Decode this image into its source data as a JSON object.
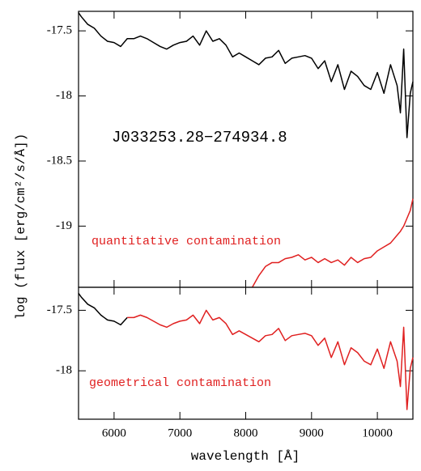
{
  "chart_data": [
    {
      "type": "line",
      "title": "J033253.28−274934.8",
      "ylabel": "log (flux [erg/cm²/s/Å])",
      "annotations": [
        "quantitative contamination"
      ],
      "xlim": [
        5460,
        10540
      ],
      "xticks": [
        6000,
        7000,
        8000,
        9000,
        10000
      ],
      "ylim": [
        -19.47,
        -17.35
      ],
      "yticks": [
        -19,
        -18.5,
        -18,
        -17.5
      ],
      "x": [
        5460,
        5500,
        5600,
        5700,
        5800,
        5900,
        6000,
        6100,
        6200,
        6300,
        6400,
        6500,
        6600,
        6700,
        6800,
        6900,
        7000,
        7100,
        7200,
        7300,
        7400,
        7500,
        7600,
        7700,
        7800,
        7900,
        8000,
        8100,
        8200,
        8300,
        8400,
        8500,
        8600,
        8700,
        8800,
        8900,
        9000,
        9100,
        9200,
        9300,
        9400,
        9500,
        9600,
        9700,
        9800,
        9900,
        10000,
        10100,
        10200,
        10300,
        10350,
        10400,
        10450,
        10500,
        10540
      ],
      "series": [
        {
          "color": "#000000",
          "values": [
            -17.36,
            -17.39,
            -17.45,
            -17.48,
            -17.54,
            -17.58,
            -17.59,
            -17.62,
            -17.56,
            -17.56,
            -17.54,
            -17.56,
            -17.59,
            -17.62,
            -17.64,
            -17.61,
            -17.59,
            -17.58,
            -17.54,
            -17.61,
            -17.5,
            -17.58,
            -17.56,
            -17.61,
            -17.7,
            -17.67,
            -17.7,
            -17.73,
            -17.76,
            -17.71,
            -17.7,
            -17.65,
            -17.75,
            -17.71,
            -17.7,
            -17.69,
            -17.71,
            -17.79,
            -17.73,
            -17.89,
            -17.76,
            -17.95,
            -17.81,
            -17.85,
            -17.92,
            -17.95,
            -17.82,
            -17.98,
            -17.76,
            -17.92,
            -18.13,
            -17.64,
            -18.32,
            -17.98,
            -17.89
          ]
        },
        {
          "color": "#e02020",
          "values": [
            null,
            null,
            null,
            null,
            null,
            null,
            null,
            null,
            null,
            null,
            null,
            null,
            null,
            null,
            null,
            null,
            null,
            null,
            null,
            null,
            null,
            null,
            null,
            null,
            null,
            null,
            null,
            -19.47,
            -19.38,
            -19.31,
            -19.28,
            -19.28,
            -19.25,
            -19.24,
            -19.22,
            -19.26,
            -19.24,
            -19.28,
            -19.25,
            -19.28,
            -19.26,
            -19.3,
            -19.24,
            -19.28,
            -19.25,
            -19.24,
            -19.19,
            -19.16,
            -19.13,
            -19.07,
            -19.04,
            -19.0,
            -18.94,
            -18.88,
            -18.79
          ]
        }
      ]
    },
    {
      "type": "line",
      "xlabel": "wavelength [Å]",
      "annotations": [
        "geometrical contamination"
      ],
      "xlim": [
        5460,
        10540
      ],
      "xticks": [
        6000,
        7000,
        8000,
        9000,
        10000
      ],
      "ylim": [
        -18.4,
        -17.31
      ],
      "yticks": [
        -18,
        -17.5
      ],
      "x": [
        5460,
        5500,
        5600,
        5700,
        5800,
        5900,
        6000,
        6100,
        6200,
        6300,
        6400,
        6500,
        6600,
        6700,
        6800,
        6900,
        7000,
        7100,
        7200,
        7300,
        7400,
        7500,
        7600,
        7700,
        7800,
        7900,
        8000,
        8100,
        8200,
        8300,
        8400,
        8500,
        8600,
        8700,
        8800,
        8900,
        9000,
        9100,
        9200,
        9300,
        9400,
        9500,
        9600,
        9700,
        9800,
        9900,
        10000,
        10100,
        10200,
        10300,
        10350,
        10400,
        10450,
        10500,
        10540
      ],
      "series": [
        {
          "color": "#000000",
          "values": [
            -17.36,
            -17.39,
            -17.45,
            -17.48,
            -17.54,
            -17.58,
            -17.59,
            -17.62,
            -17.56,
            null,
            null,
            null,
            null,
            null,
            null,
            null,
            null,
            null,
            null,
            null,
            null,
            null,
            null,
            null,
            null,
            null,
            null,
            null,
            null,
            null,
            null,
            null,
            null,
            null,
            null,
            null,
            null,
            null,
            null,
            null,
            null,
            null,
            null,
            null,
            null,
            null,
            null,
            null,
            null,
            null,
            null,
            null,
            null,
            null,
            null
          ]
        },
        {
          "color": "#e02020",
          "values": [
            null,
            null,
            null,
            null,
            null,
            null,
            null,
            null,
            -17.56,
            -17.56,
            -17.54,
            -17.56,
            -17.59,
            -17.62,
            -17.64,
            -17.61,
            -17.59,
            -17.58,
            -17.54,
            -17.61,
            -17.5,
            -17.58,
            -17.56,
            -17.61,
            -17.7,
            -17.67,
            -17.7,
            -17.73,
            -17.76,
            -17.71,
            -17.7,
            -17.65,
            -17.75,
            -17.71,
            -17.7,
            -17.69,
            -17.71,
            -17.79,
            -17.73,
            -17.89,
            -17.76,
            -17.95,
            -17.81,
            -17.85,
            -17.92,
            -17.95,
            -17.82,
            -17.98,
            -17.76,
            -17.92,
            -18.13,
            -17.64,
            -18.32,
            -17.98,
            -17.89
          ]
        }
      ]
    }
  ]
}
